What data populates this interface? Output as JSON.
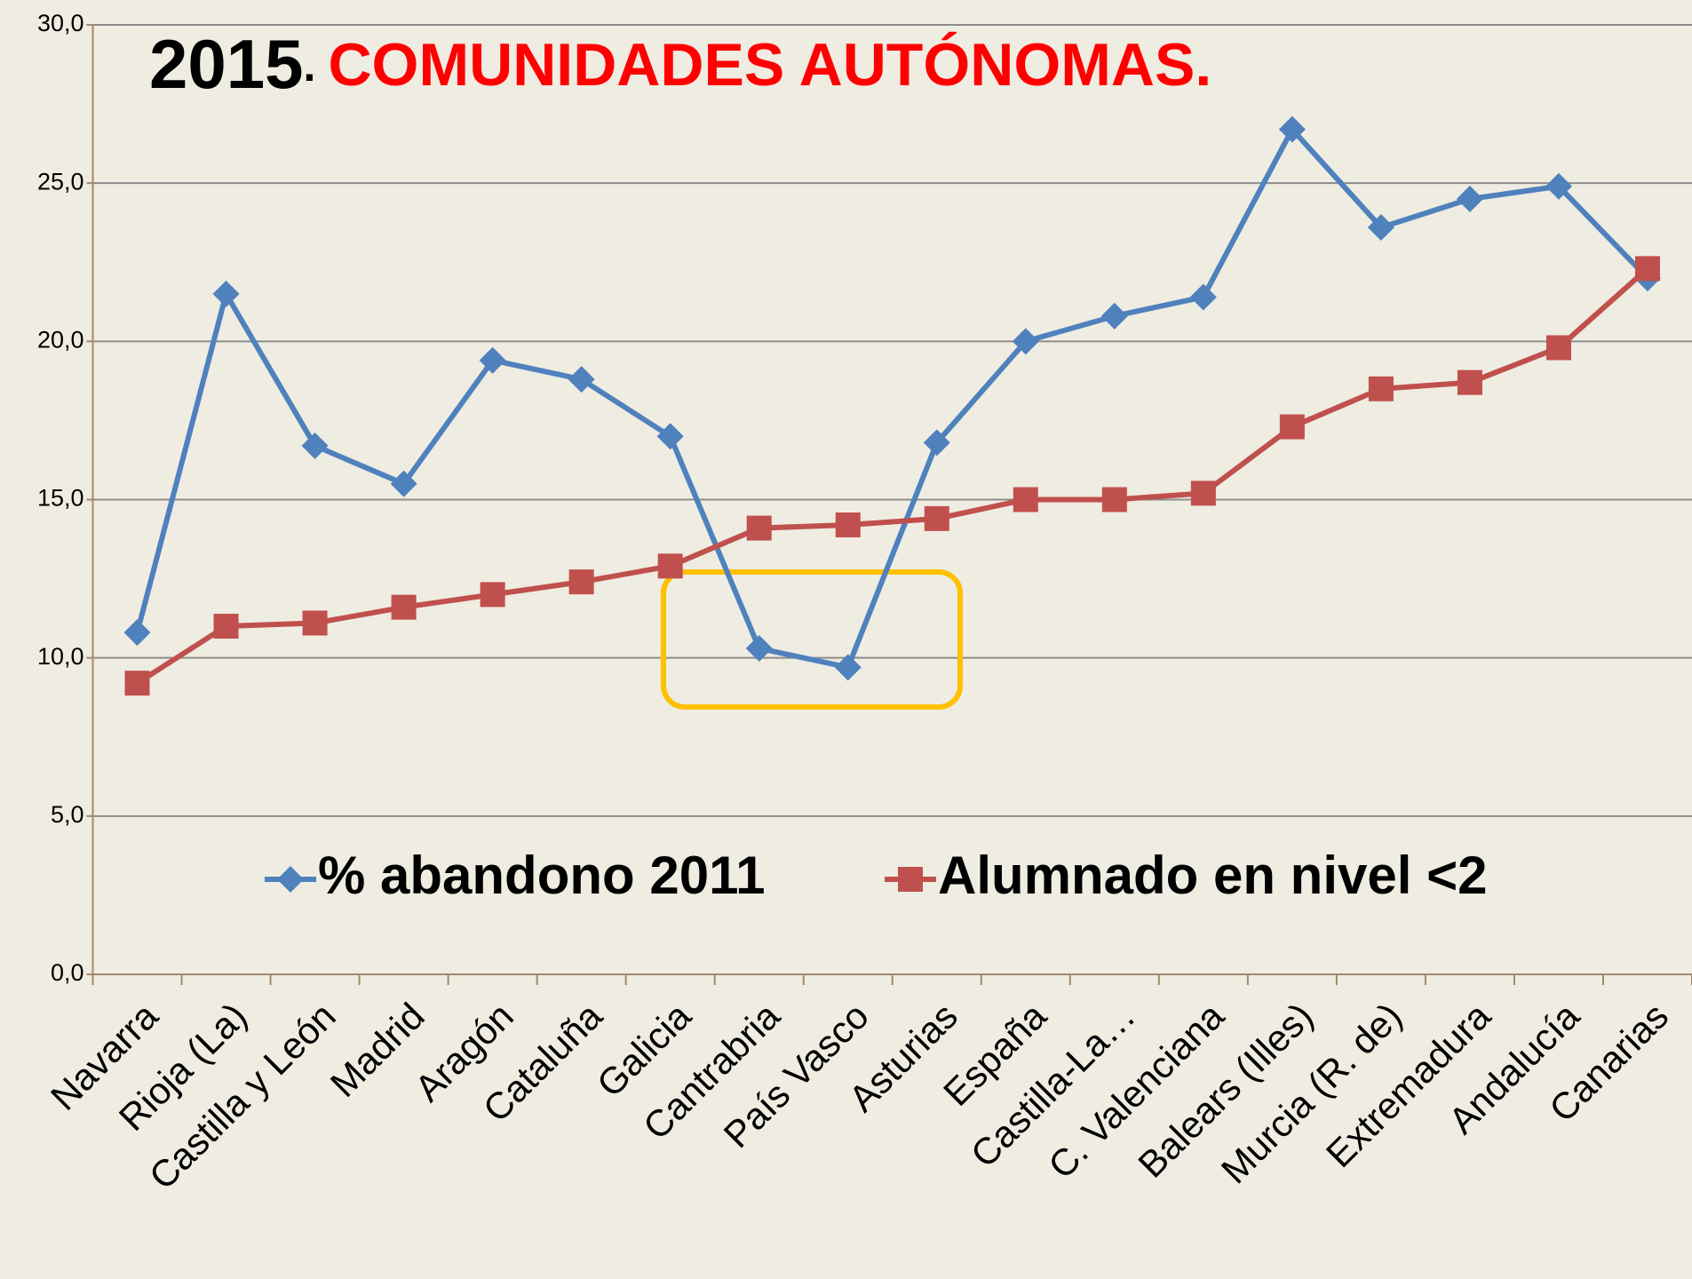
{
  "chart_data": {
    "type": "line",
    "title_parts": [
      "2015",
      ".",
      "COMUNIDADES AUTÓNOMAS."
    ],
    "categories": [
      "Navarra",
      "Rioja (La)",
      "Castilla y León",
      "Madrid",
      "Aragón",
      "Cataluña",
      "Galicia",
      "Cantrabria",
      "País Vasco",
      "Asturias",
      "España",
      "Castilla-La…",
      "C. Valenciana",
      "Balears (Illes)",
      "Murcia (R. de)",
      "Extremadura",
      "Andalucía",
      "Canarias"
    ],
    "series": [
      {
        "name": "% abandono 2011",
        "color": "#4f81bd",
        "marker": "diamond",
        "values": [
          10.8,
          21.5,
          16.7,
          15.5,
          19.4,
          18.8,
          17.0,
          10.3,
          9.7,
          16.8,
          20.0,
          20.8,
          21.4,
          26.7,
          23.6,
          24.5,
          24.9,
          22.0
        ]
      },
      {
        "name": "Alumnado en nivel <2",
        "color": "#c0504d",
        "marker": "square",
        "values": [
          9.2,
          11.0,
          11.1,
          11.6,
          12.0,
          12.4,
          12.9,
          14.1,
          14.2,
          14.4,
          15.0,
          15.0,
          15.2,
          17.3,
          18.5,
          18.7,
          19.8,
          22.3
        ]
      }
    ],
    "ylim": [
      0,
      30
    ],
    "yticks": [
      {
        "value": 0,
        "label": "0,0"
      },
      {
        "value": 5,
        "label": "5,0"
      },
      {
        "value": 10,
        "label": "10,0"
      },
      {
        "value": 15,
        "label": "15,0"
      },
      {
        "value": 20,
        "label": "20,0"
      },
      {
        "value": 25,
        "label": "25,0"
      },
      {
        "value": 30,
        "label": "30,0"
      }
    ],
    "grid": true,
    "legend": "bottom"
  }
}
